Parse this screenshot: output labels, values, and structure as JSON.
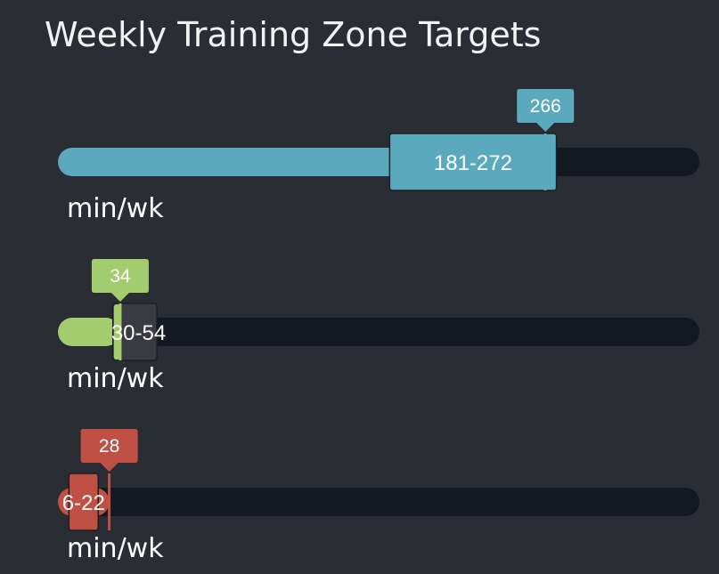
{
  "chart_data": {
    "type": "bullet",
    "title": "Weekly Training Zone Targets",
    "xlim": [
      0,
      350
    ],
    "unit": "min/wk",
    "background_color": "#2a2d34",
    "track_color": "#141821",
    "band_neutral_color": "#3a3b42",
    "zones": [
      {
        "actual": 266,
        "actual_label": "266",
        "target_range": [
          181,
          272
        ],
        "target_label": "181-272",
        "unit": "min/wk",
        "color": "#5aa9bd",
        "band_filled": true
      },
      {
        "actual": 34,
        "actual_label": "34",
        "target_range": [
          30,
          54
        ],
        "target_label": "30-54",
        "unit": "min/wk",
        "color": "#a3cc6e",
        "band_filled": false
      },
      {
        "actual": 28,
        "actual_label": "28",
        "target_range": [
          6,
          22
        ],
        "target_label": "6-22",
        "unit": "min/wk",
        "color": "#c05044",
        "band_filled": true
      }
    ]
  }
}
